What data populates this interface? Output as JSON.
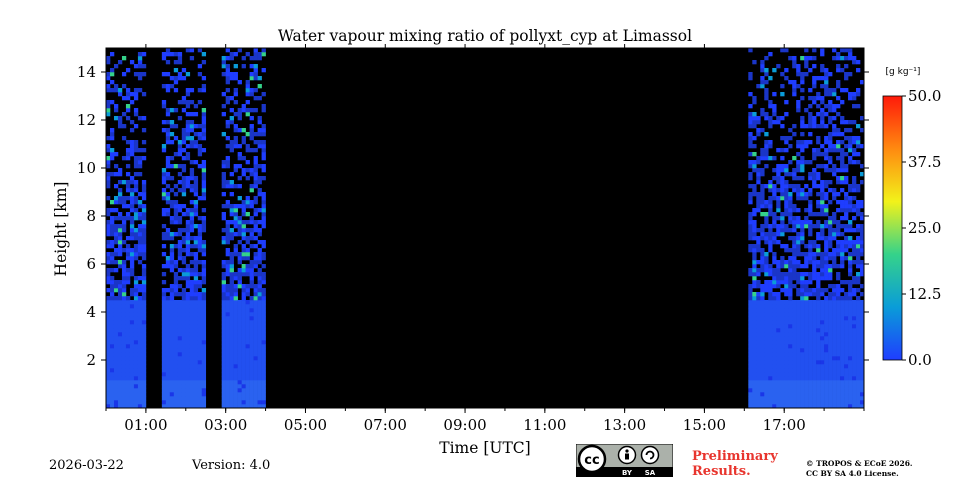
{
  "chart_data": {
    "type": "heatmap",
    "title": "Water vapour mixing ratio of pollyxt_cyp at Limassol",
    "xlabel": "Time [UTC]",
    "ylabel": "Height [km]",
    "xlim": [
      0,
      19
    ],
    "ylim": [
      0,
      15
    ],
    "x_ticks": [
      {
        "value": 1,
        "label": "01:00"
      },
      {
        "value": 3,
        "label": "03:00"
      },
      {
        "value": 5,
        "label": "05:00"
      },
      {
        "value": 7,
        "label": "07:00"
      },
      {
        "value": 9,
        "label": "09:00"
      },
      {
        "value": 11,
        "label": "11:00"
      },
      {
        "value": 13,
        "label": "13:00"
      },
      {
        "value": 15,
        "label": "15:00"
      },
      {
        "value": 17,
        "label": "17:00"
      }
    ],
    "y_ticks": [
      {
        "value": 2,
        "label": "2"
      },
      {
        "value": 4,
        "label": "4"
      },
      {
        "value": 6,
        "label": "6"
      },
      {
        "value": 8,
        "label": "8"
      },
      {
        "value": 10,
        "label": "10"
      },
      {
        "value": 12,
        "label": "12"
      },
      {
        "value": 14,
        "label": "14"
      }
    ],
    "colorbar": {
      "unit": "[g kg⁻¹]",
      "min": 0,
      "max": 50,
      "ticks": [
        {
          "value": 0,
          "label": "0.0"
        },
        {
          "value": 12.5,
          "label": "12.5"
        },
        {
          "value": 25,
          "label": "25.0"
        },
        {
          "value": 37.5,
          "label": "37.5"
        },
        {
          "value": 50,
          "label": "50.0"
        }
      ],
      "colors": [
        "#1f3dff",
        "#0a9cd8",
        "#35d28a",
        "#f2f21a",
        "#ff8a10",
        "#ff1a0a"
      ]
    },
    "no_data_periods": [
      {
        "start": 1.0,
        "end": 1.45,
        "below": 2.0
      },
      {
        "start": 2.5,
        "end": 2.95,
        "below": 1.8
      },
      {
        "start": 4.0,
        "end": 16.15,
        "below": 0.0
      }
    ],
    "data_periods": [
      {
        "start": 0.0,
        "end": 1.0,
        "value_g_kg": 3
      },
      {
        "start": 1.45,
        "end": 2.5,
        "value_g_kg": 3
      },
      {
        "start": 2.95,
        "end": 4.0,
        "value_g_kg": 3
      },
      {
        "start": 16.15,
        "end": 19.0,
        "value_g_kg": 3
      }
    ]
  },
  "footer": {
    "date": "2026-03-22",
    "version": "Version: 4.0",
    "preliminary_line1": "Preliminary",
    "preliminary_line2": "Results.",
    "copyright_line1": "© TROPOS & ECoE 2026.",
    "copyright_line2": "CC BY SA 4.0 License.",
    "license_by": "BY",
    "license_sa": "SA",
    "license_cc": "cc"
  }
}
